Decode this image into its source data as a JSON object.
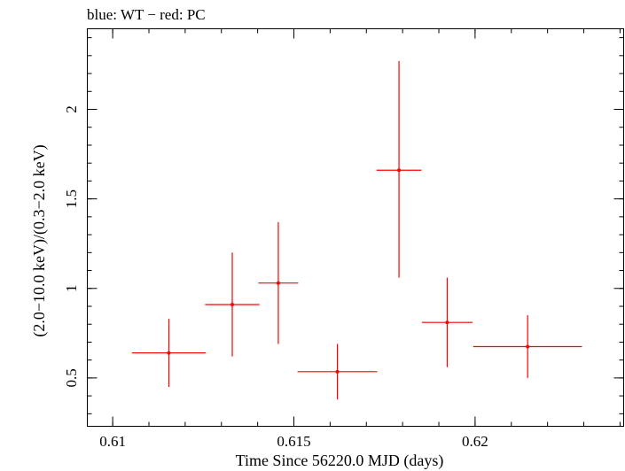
{
  "chart_data": {
    "type": "scatter",
    "title": "blue: WT − red: PC",
    "xlabel": "Time Since 56220.0 MJD (days)",
    "ylabel": "(2.0−10.0 keV)/(0.3−2.0 keV)",
    "xlim": [
      0.6093,
      0.6241
    ],
    "ylim": [
      0.23,
      2.45
    ],
    "x_ticks": [
      {
        "value": 0.61,
        "label": "0.61"
      },
      {
        "value": 0.615,
        "label": "0.615"
      },
      {
        "value": 0.62,
        "label": "0.62"
      }
    ],
    "y_ticks": [
      {
        "value": 0.5,
        "label": "0.5"
      },
      {
        "value": 1.0,
        "label": "1"
      },
      {
        "value": 1.5,
        "label": "1.5"
      },
      {
        "value": 2.0,
        "label": "2"
      }
    ],
    "x_minor_step": 0.001,
    "y_minor_step": 0.1,
    "grid": false,
    "series": [
      {
        "color": "#ff0000",
        "points": [
          {
            "x": 0.61155,
            "xerr": 0.00102,
            "y": 0.64,
            "ylo": 0.45,
            "yhi": 0.83
          },
          {
            "x": 0.6133,
            "xerr": 0.00075,
            "y": 0.91,
            "ylo": 0.62,
            "yhi": 1.2
          },
          {
            "x": 0.61457,
            "xerr": 0.00055,
            "y": 1.03,
            "ylo": 0.69,
            "yhi": 1.37
          },
          {
            "x": 0.6162,
            "xerr": 0.0011,
            "y": 0.535,
            "ylo": 0.38,
            "yhi": 0.69
          },
          {
            "x": 0.6179,
            "xerr": 0.00062,
            "y": 1.66,
            "ylo": 1.06,
            "yhi": 2.27
          },
          {
            "x": 0.61923,
            "xerr": 0.0007,
            "y": 0.81,
            "ylo": 0.56,
            "yhi": 1.06
          },
          {
            "x": 0.62145,
            "xerr": 0.0015,
            "y": 0.675,
            "ylo": 0.5,
            "yhi": 0.85
          }
        ]
      }
    ]
  }
}
